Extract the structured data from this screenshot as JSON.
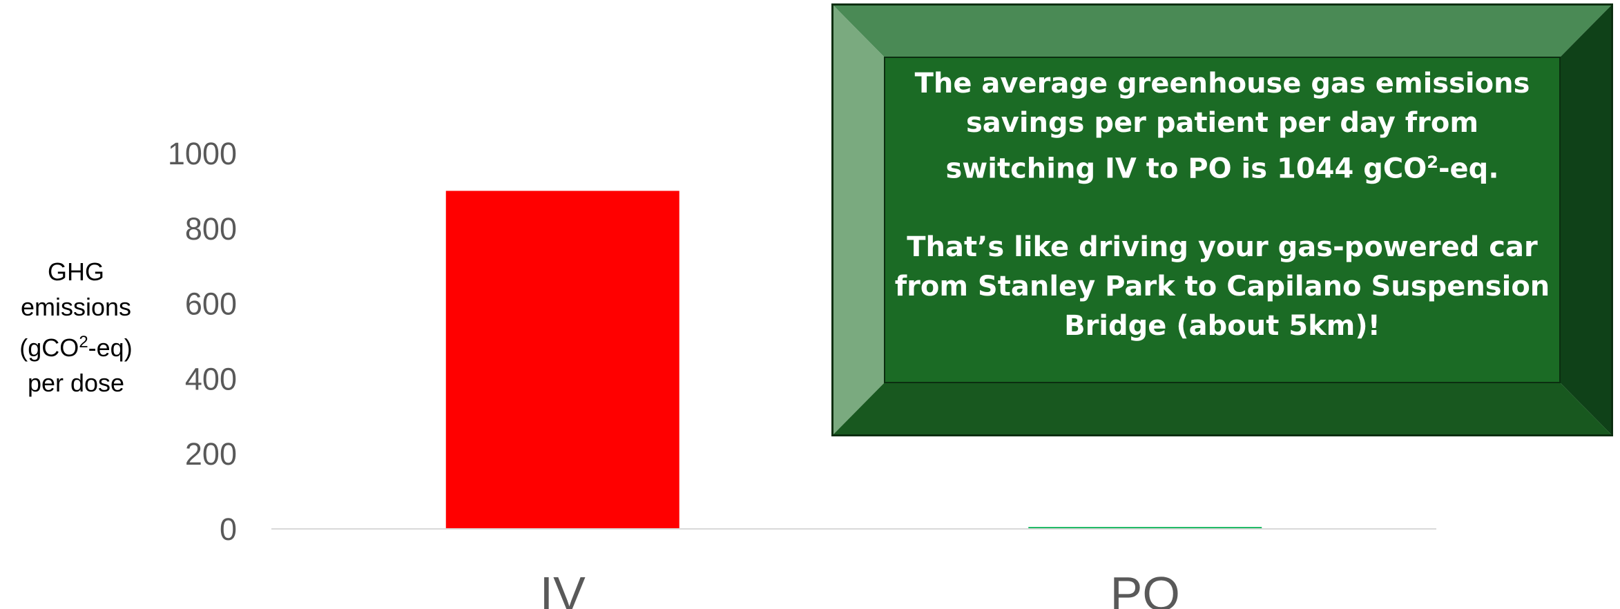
{
  "chart_data": {
    "type": "bar",
    "categories": [
      "IV",
      "PO"
    ],
    "values": [
      900,
      5
    ],
    "colors": [
      "#ff0000",
      "#00b050"
    ],
    "ylabel_lines": [
      "GHG",
      "emissions",
      "(gCO",
      "2",
      "-eq)",
      "per dose"
    ],
    "yticks": [
      "0",
      "200",
      "400",
      "600",
      "800",
      "1000"
    ],
    "ylim": [
      0,
      1000
    ],
    "grid": false
  },
  "callout": {
    "paragraph1": {
      "before_superscript": "The average greenhouse gas emissions savings per patient per day from switching IV to PO is 1044 gCO",
      "superscript": "2",
      "after_superscript": "-eq."
    },
    "paragraph2": "That’s like driving your gas-powered car from Stanley Park to Capilano Suspension Bridge (about 5km)!",
    "colors": {
      "face": "#1b6b25",
      "top_bevel": "#4a8a55",
      "left_bevel": "#7aaa7f",
      "right_bevel": "#0f4118",
      "bottom_bevel": "#18581f",
      "border": "#0b2e10"
    }
  }
}
